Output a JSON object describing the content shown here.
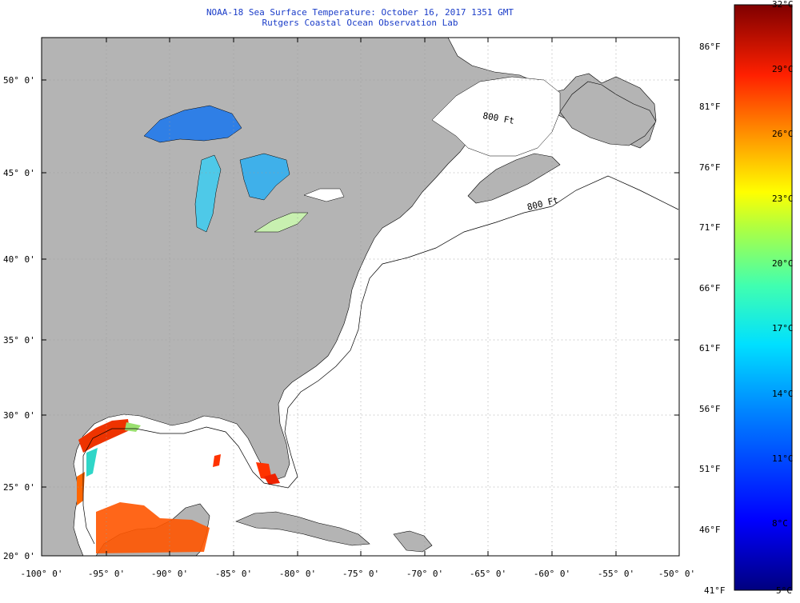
{
  "title": {
    "line1": "NOAA-18 Sea Surface Temperature:  October 16, 2017 1351 GMT",
    "line2": "Rutgers Coastal Ocean Observation Lab"
  },
  "map": {
    "lat_labels": [
      "50° 0'",
      "45° 0'",
      "40° 0'",
      "35° 0'",
      "30° 0'",
      "25° 0'",
      "20° 0'"
    ],
    "lon_labels": [
      "-100° 0'",
      "-95° 0'",
      "-90° 0'",
      "-85° 0'",
      "-80° 0'",
      "-75° 0'",
      "-70° 0'",
      "-65° 0'",
      "-60° 0'",
      "-55° 0'",
      "-50° 0'"
    ],
    "isobath_label": "800 Ft",
    "colors": {
      "land": "#b4b4b4",
      "ocean": "#ffffff",
      "grid": "#999999",
      "coast": "#000000"
    }
  },
  "colorbar": {
    "celsius": [
      "32°C",
      "29°C",
      "26°C",
      "23°C",
      "20°C",
      "17°C",
      "14°C",
      "11°C",
      "8°C",
      "5°C"
    ],
    "fahrenheit": [
      "86°F",
      "81°F",
      "76°F",
      "71°F",
      "66°F",
      "61°F",
      "56°F",
      "51°F",
      "46°F",
      "41°F"
    ],
    "min_c": 5,
    "max_c": 32
  }
}
